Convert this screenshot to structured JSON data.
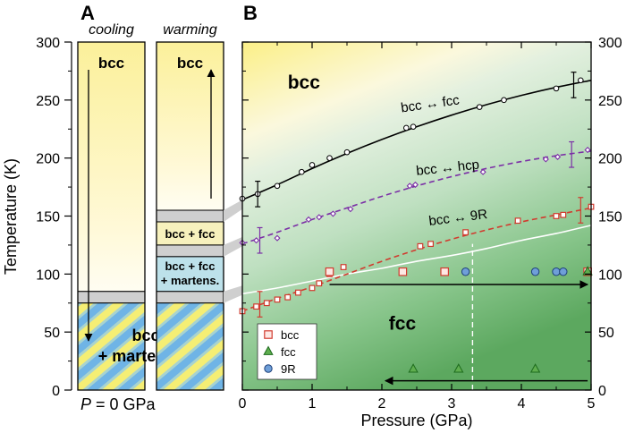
{
  "panel_labels": {
    "a": "A",
    "b": "B"
  },
  "left_axis": {
    "label": "Temperature (K)",
    "ticks": [
      "0",
      "50",
      "100",
      "150",
      "200",
      "250",
      "300"
    ]
  },
  "right_axis": {
    "ticks": [
      "0",
      "50",
      "100",
      "150",
      "200",
      "250",
      "300"
    ]
  },
  "panel_a": {
    "columns": [
      {
        "title": "cooling",
        "phase_labels": {
          "top": "bcc",
          "bottom_line1": "bcc",
          "bottom_line2": "+ martensite"
        },
        "bands_K": [
          {
            "phase": "bcc",
            "from": 85,
            "to": 300
          },
          {
            "phase": "transition",
            "from": 75,
            "to": 85
          },
          {
            "phase": "bcc + martensite",
            "from": 0,
            "to": 75
          }
        ],
        "arrow_direction": "down"
      },
      {
        "title": "warming",
        "phase_labels": {
          "top": "bcc",
          "band2": "bcc + fcc",
          "band3_line1": "bcc + fcc",
          "band3_line2": "+ martens."
        },
        "bands_K": [
          {
            "phase": "bcc",
            "from": 155,
            "to": 300
          },
          {
            "phase": "transition",
            "from": 145,
            "to": 155
          },
          {
            "phase": "bcc + fcc",
            "from": 125,
            "to": 145
          },
          {
            "phase": "transition",
            "from": 115,
            "to": 125
          },
          {
            "phase": "bcc + fcc + martens.",
            "from": 85,
            "to": 115
          },
          {
            "phase": "transition",
            "from": 75,
            "to": 85
          },
          {
            "phase": "bcc + martensite",
            "from": 0,
            "to": 75
          }
        ],
        "arrow_direction": "up"
      }
    ],
    "pressure_label": "P = 0 GPa"
  },
  "chart_data": {
    "type": "scatter",
    "xlabel": "Pressure (GPa)",
    "ylabel": "Temperature (K)",
    "xlim": [
      0,
      5
    ],
    "ylim": [
      0,
      300
    ],
    "x_ticks": [
      "0",
      "1",
      "2",
      "3",
      "4",
      "5"
    ],
    "region_labels": {
      "upper": "bcc",
      "lower": "fcc"
    },
    "transition_lines": [
      {
        "name": "bcc ↔ fcc",
        "color": "#000000",
        "style": "solid",
        "marker": "circle",
        "points": [
          [
            0,
            165
          ],
          [
            0.22,
            169
          ],
          [
            0.5,
            176
          ],
          [
            0.85,
            188
          ],
          [
            1.0,
            194
          ],
          [
            1.25,
            200
          ],
          [
            1.5,
            205
          ],
          [
            2.35,
            226
          ],
          [
            2.45,
            227
          ],
          [
            3.4,
            244
          ],
          [
            3.75,
            250
          ],
          [
            4.5,
            260
          ],
          [
            4.85,
            267
          ]
        ],
        "curve": [
          [
            0,
            164
          ],
          [
            0.5,
            177
          ],
          [
            1,
            191
          ],
          [
            1.5,
            204
          ],
          [
            2,
            216
          ],
          [
            2.5,
            227
          ],
          [
            3,
            237
          ],
          [
            3.5,
            246
          ],
          [
            4,
            254
          ],
          [
            4.5,
            261
          ],
          [
            5,
            267
          ]
        ],
        "error_bars": [
          {
            "x": 0.22,
            "y": 169,
            "err": 11
          },
          {
            "x": 4.75,
            "y": 263,
            "err": 11
          }
        ]
      },
      {
        "name": "bcc ↔ hcp",
        "color": "#7b2fa6",
        "style": "dashed",
        "marker": "diamond",
        "points": [
          [
            0,
            127
          ],
          [
            0.2,
            129
          ],
          [
            0.5,
            131
          ],
          [
            0.95,
            147
          ],
          [
            1.1,
            149
          ],
          [
            1.3,
            152
          ],
          [
            1.55,
            156
          ],
          [
            2.4,
            176
          ],
          [
            2.48,
            177
          ],
          [
            3.45,
            188
          ],
          [
            4.35,
            199
          ],
          [
            4.52,
            201
          ],
          [
            4.95,
            207
          ]
        ],
        "curve": [
          [
            0,
            126
          ],
          [
            0.5,
            136
          ],
          [
            1,
            147
          ],
          [
            1.5,
            157
          ],
          [
            2,
            167
          ],
          [
            2.5,
            176
          ],
          [
            3,
            184
          ],
          [
            3.5,
            191
          ],
          [
            4,
            197
          ],
          [
            4.5,
            202
          ],
          [
            5,
            206
          ]
        ],
        "error_bars": [
          {
            "x": 0.25,
            "y": 129,
            "err": 11
          },
          {
            "x": 4.72,
            "y": 203,
            "err": 11
          }
        ]
      },
      {
        "name": "bcc ↔ 9R",
        "color": "#d13b2f",
        "style": "dashed",
        "marker": "square",
        "points": [
          [
            0,
            68
          ],
          [
            0.2,
            72
          ],
          [
            0.35,
            75
          ],
          [
            0.5,
            78
          ],
          [
            0.65,
            80
          ],
          [
            0.8,
            84
          ],
          [
            1.0,
            88
          ],
          [
            1.1,
            92
          ],
          [
            1.25,
            100
          ],
          [
            1.45,
            106
          ],
          [
            2.55,
            124
          ],
          [
            2.7,
            126
          ],
          [
            3.2,
            136
          ],
          [
            3.95,
            146
          ],
          [
            4.5,
            150
          ],
          [
            4.6,
            151
          ],
          [
            5.0,
            158
          ]
        ],
        "curve": [
          [
            0,
            68
          ],
          [
            0.5,
            79
          ],
          [
            1,
            89
          ],
          [
            1.5,
            100
          ],
          [
            2,
            111
          ],
          [
            2.5,
            121
          ],
          [
            3,
            130
          ],
          [
            3.5,
            138
          ],
          [
            4,
            145
          ],
          [
            4.5,
            151
          ],
          [
            5,
            157
          ]
        ],
        "error_bars": [
          {
            "x": 0.25,
            "y": 74,
            "err": 11
          },
          {
            "x": 4.85,
            "y": 155,
            "err": 11
          }
        ]
      }
    ],
    "white_line": {
      "points": [
        [
          0,
          83
        ],
        [
          0.5,
          88
        ],
        [
          1,
          94
        ],
        [
          1.5,
          100
        ],
        [
          2,
          105
        ],
        [
          2.5,
          111
        ],
        [
          3,
          116
        ],
        [
          3.5,
          122
        ],
        [
          4,
          129
        ],
        [
          4.5,
          135
        ],
        [
          5,
          142
        ]
      ]
    },
    "legend": {
      "position": "bottom-left",
      "items": [
        {
          "label": "bcc",
          "marker": "square",
          "color": "#d13b2f",
          "fill": "#fde8e4"
        },
        {
          "label": "fcc",
          "marker": "triangle",
          "color": "#1d6b1d",
          "fill": "#5fae4f"
        },
        {
          "label": "9R",
          "marker": "circle",
          "color": "#1c3f7a",
          "fill": "#6f9fd8"
        }
      ]
    },
    "phase_points": {
      "bcc": [
        [
          1.25,
          102
        ],
        [
          2.3,
          102
        ],
        [
          2.9,
          102
        ],
        [
          4.95,
          102
        ]
      ],
      "fcc": [
        [
          2.45,
          18
        ],
        [
          3.1,
          18
        ],
        [
          4.2,
          18
        ],
        [
          4.95,
          102
        ]
      ],
      "9R": [
        [
          3.2,
          102
        ],
        [
          4.2,
          102
        ],
        [
          4.5,
          102
        ],
        [
          4.6,
          102
        ]
      ]
    },
    "arrows": [
      {
        "from": [
          1.25,
          91
        ],
        "to": [
          4.95,
          91
        ]
      },
      {
        "from": [
          4.95,
          8
        ],
        "to": [
          2.05,
          8
        ]
      }
    ],
    "vertical_reference": {
      "x": 3.3,
      "from": 0,
      "to": 126
    }
  }
}
